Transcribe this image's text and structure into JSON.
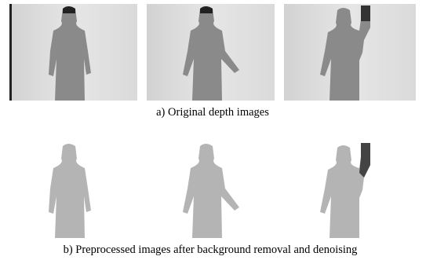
{
  "figure": {
    "captions": [
      "a) Original depth images",
      "b) Preprocessed images after background removal and denoising"
    ]
  }
}
